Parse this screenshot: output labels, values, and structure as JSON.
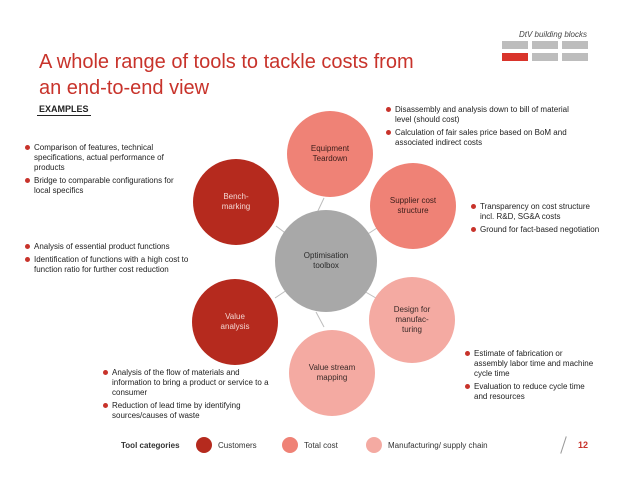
{
  "header": {
    "brand_label": "DtV building blocks",
    "title_line1": "A whole range of tools to tackle costs from",
    "title_line2": "an end-to-end view",
    "examples_label": "EXAMPLES"
  },
  "diagram": {
    "center": "Optimisation\ntoolbox",
    "nodes": {
      "equipment": "Equipment\nTeardown",
      "supplier": "Supplier cost\nstructure",
      "design": "Design for\nmanufac-\nturing",
      "valuestream": "Value stream\nmapping",
      "valueanalysis": "Value\nanalysis",
      "benchmarking": "Bench-\nmarking"
    },
    "colors": {
      "customers": "#b52a1e",
      "total_cost": "#ef8276",
      "supply_chain": "#f4aaa2",
      "center": "#a8a8a8",
      "accent": "#c8332b"
    }
  },
  "notes": {
    "equipment": [
      "Disassembly and analysis down to bill of material level (should cost)",
      "Calculation of fair sales price based on BoM and associated indirect costs"
    ],
    "supplier": [
      "Transparency on cost structure incl. R&D, SG&A costs",
      "Ground for fact-based negotiation"
    ],
    "design": [
      "Estimate of fabrication or assembly labor time and machine cycle time",
      "Evaluation to reduce cycle time and resources"
    ],
    "valuestream": [
      "Analysis of the flow of materials and information to bring a product or service to a consumer",
      "Reduction of lead time by identifying sources/causes of waste"
    ],
    "valueanalysis": [
      "Analysis of essential product functions",
      "Identification of functions with a high cost to function ratio for further cost reduction"
    ],
    "benchmarking": [
      "Comparison of features, technical specifications, actual performance of products",
      "Bridge to comparable configurations for local specifics"
    ]
  },
  "footer": {
    "categories_label": "Tool categories",
    "customers": "Customers",
    "total_cost": "Total cost",
    "supply_chain": "Manufacturing/ supply chain",
    "page": "12"
  }
}
